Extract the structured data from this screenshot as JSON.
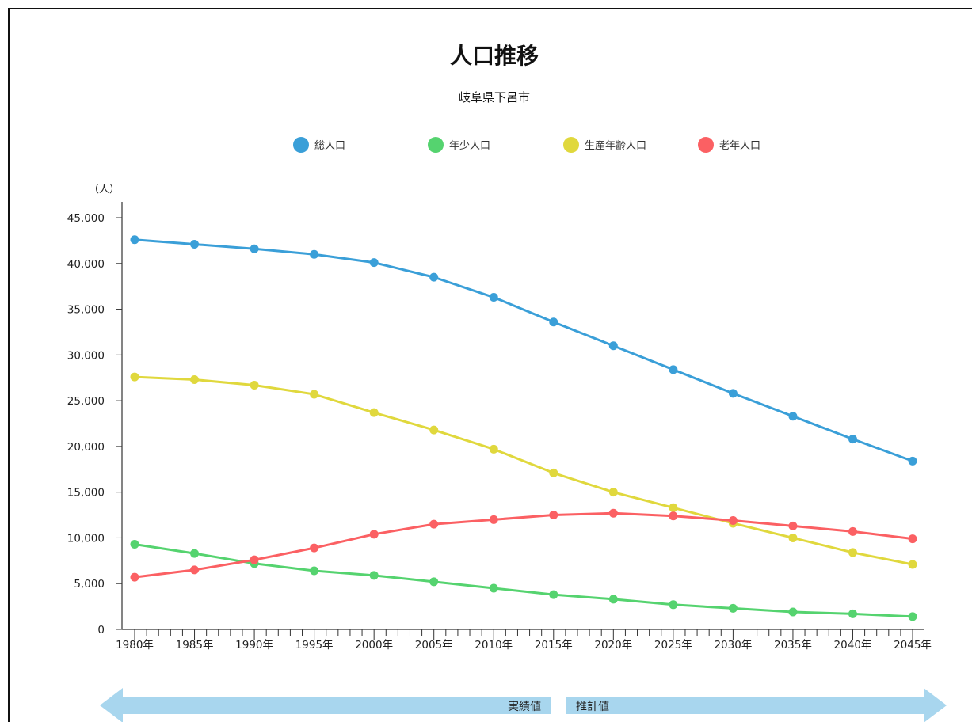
{
  "chart_data": {
    "type": "line",
    "title": "人口推移",
    "subtitle": "岐阜県下呂市",
    "ylabel": "（人）",
    "xlabel": "",
    "ylim": [
      0,
      45000
    ],
    "yticks": [
      0,
      5000,
      10000,
      15000,
      20000,
      25000,
      30000,
      35000,
      40000,
      45000
    ],
    "ytick_labels": [
      "0",
      "5,000",
      "10,000",
      "15,000",
      "20,000",
      "25,000",
      "30,000",
      "35,000",
      "40,000",
      "45,000"
    ],
    "categories": [
      "1980年",
      "1985年",
      "1990年",
      "1995年",
      "2000年",
      "2005年",
      "2010年",
      "2015年",
      "2020年",
      "2025年",
      "2030年",
      "2035年",
      "2040年",
      "2045年"
    ],
    "legend_position": "top-center",
    "grid": false,
    "series": [
      {
        "name": "総人口",
        "color": "#3a9fd8",
        "values": [
          42600,
          42100,
          41600,
          41000,
          40100,
          38500,
          36300,
          33600,
          31000,
          28400,
          25800,
          23300,
          20800,
          18400
        ]
      },
      {
        "name": "年少人口",
        "color": "#55d36f",
        "values": [
          9300,
          8300,
          7200,
          6400,
          5900,
          5200,
          4500,
          3800,
          3300,
          2700,
          2300,
          1900,
          1700,
          1400
        ]
      },
      {
        "name": "生産年齢人口",
        "color": "#e0d83d",
        "values": [
          27600,
          27300,
          26700,
          25700,
          23700,
          21800,
          19700,
          17100,
          15000,
          13300,
          11600,
          10000,
          8400,
          7100
        ]
      },
      {
        "name": "老年人口",
        "color": "#fb6063",
        "values": [
          5700,
          6500,
          7600,
          8900,
          10400,
          11500,
          12000,
          12500,
          12700,
          12400,
          11900,
          11300,
          10700,
          9900
        ]
      }
    ],
    "annotations": {
      "actual_label": "実績値",
      "forecast_label": "推計値",
      "actual_color": "#a8d6ee",
      "forecast_color": "#a8d6ee"
    }
  }
}
